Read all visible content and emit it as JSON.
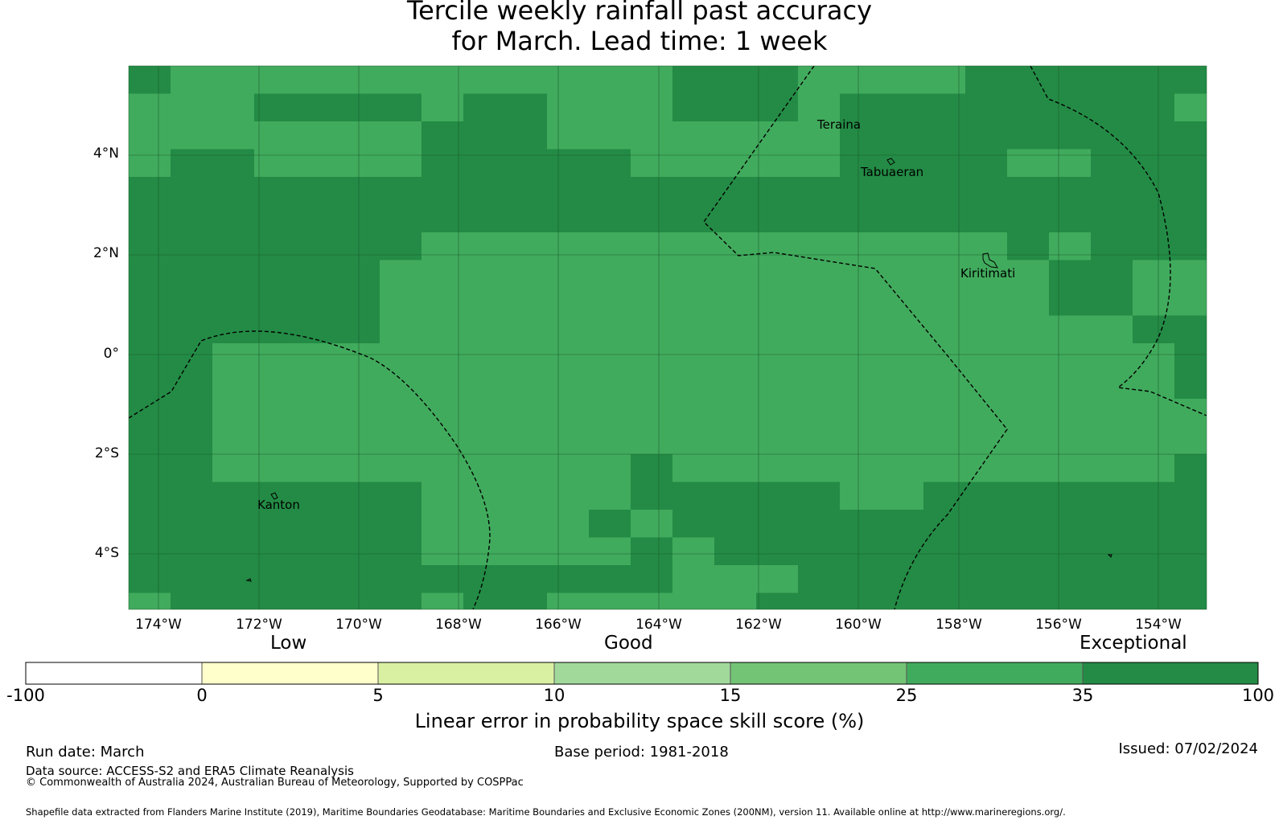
{
  "title": {
    "line1": "Tercile weekly rainfall past accuracy",
    "line2": "for March. Lead time: 1 week"
  },
  "colors": {
    "grid": "#1d5c2f",
    "class_35_100": "#238b45",
    "class_25_35": "#41ab5d",
    "class_15_25": "#74c476",
    "class_10_15": "#a1d99b",
    "class_5_10": "#d9f0a3",
    "class_0_5": "#ffffcc",
    "class_neg": "#ffffff"
  },
  "map": {
    "y_ticks": [
      "4°N",
      "2°N",
      "0°",
      "2°S",
      "4°S"
    ],
    "x_ticks": [
      "174°W",
      "172°W",
      "170°W",
      "168°W",
      "166°W",
      "164°W",
      "162°W",
      "160°W",
      "158°W",
      "156°W",
      "154°W"
    ],
    "places": [
      {
        "name": "Teraina"
      },
      {
        "name": "Tabuaeran"
      },
      {
        "name": "Kiritimati"
      },
      {
        "name": "Kanton"
      }
    ]
  },
  "colorbar": {
    "categories": [
      "Low",
      "Good",
      "Exceptional"
    ],
    "ticks": [
      "-100",
      "0",
      "5",
      "10",
      "15",
      "25",
      "35",
      "100"
    ],
    "label": "Linear error in probability space skill score (%)"
  },
  "footer": {
    "run_date": "Run date: March",
    "base_period": "Base period: 1981-2018",
    "issued": "Issued: 07/02/2024",
    "data_source": "Data source: ACCESS-S2 and ERA5 Climate Reanalysis",
    "copyright": "© Commonwealth of Australia 2024, Australian Bureau of Meteorology, Supported by COSPPac",
    "shapefile": "Shapefile data extracted from Flanders Marine Institute (2019), Maritime Boundaries Geodatabase: Maritime Boundaries and Exclusive Economic Zones (200NM), version 11. Available online at http://www.marineregions.org/."
  }
}
